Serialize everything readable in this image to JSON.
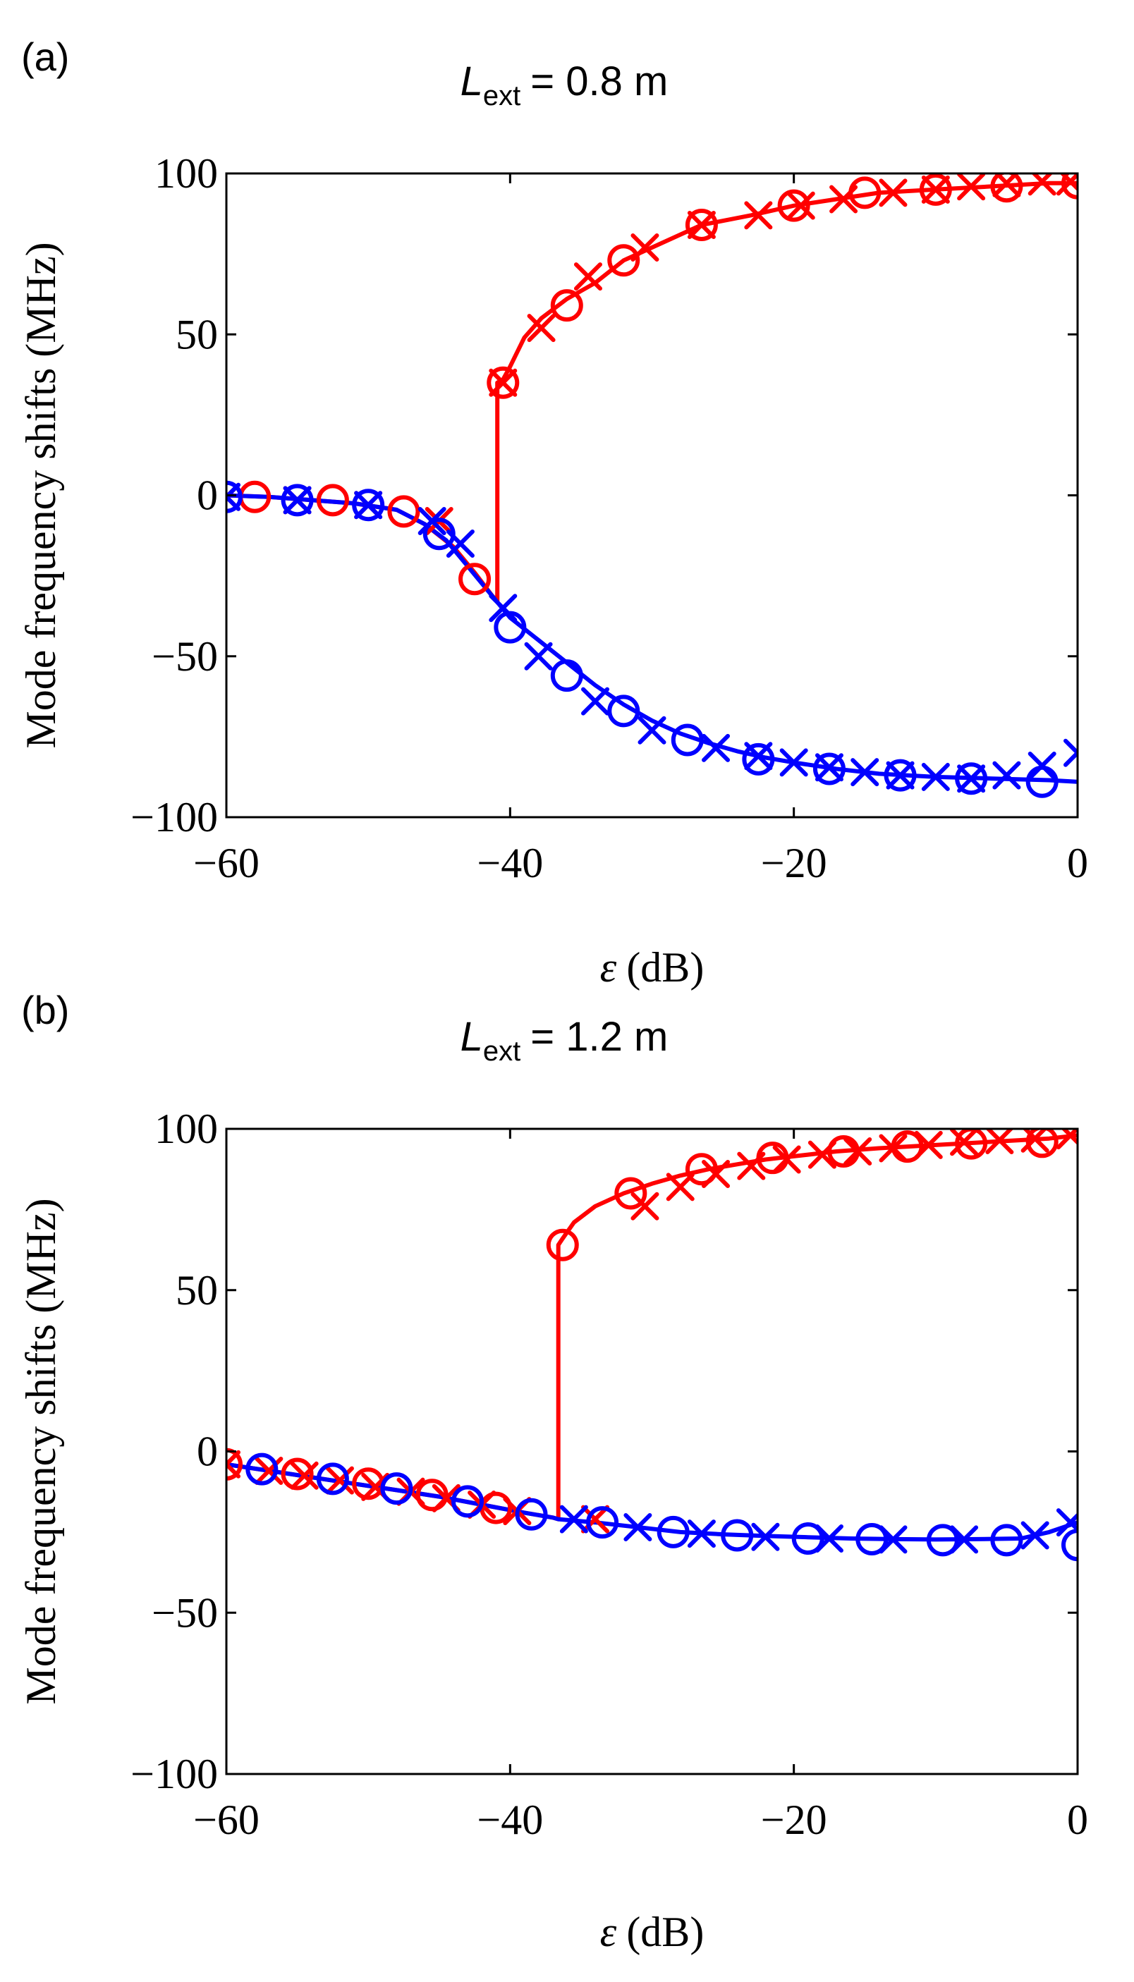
{
  "figure": {
    "panels": [
      {
        "label": "(a)",
        "title_symbol": "L",
        "title_subscript": "ext",
        "title_value": "= 0.8 m"
      },
      {
        "label": "(b)",
        "title_symbol": "L",
        "title_subscript": "ext",
        "title_value": "= 1.2 m"
      }
    ]
  },
  "chart_data": [
    {
      "type": "line",
      "panel": "(a)",
      "title": "L_ext = 0.8 m",
      "xlabel_symbol": "ε",
      "xlabel_unit": "(dB)",
      "ylabel": "Mode frequency shifts (MHz)",
      "xlim": [
        -60,
        0
      ],
      "ylim": [
        -100,
        100
      ],
      "xticks": [
        -60,
        -40,
        -20,
        0
      ],
      "xtick_labels": [
        "−60",
        "−40",
        "−20",
        "0"
      ],
      "yticks": [
        100,
        50,
        0,
        -50,
        -100
      ],
      "ytick_labels": [
        "100",
        "50",
        "0",
        "−50",
        "−100"
      ],
      "colors": {
        "red": "#ff0000",
        "blue": "#0000ff"
      },
      "series": [
        {
          "name": "red mode (curve)",
          "color": "#ff0000",
          "marker": "none",
          "x": [
            -60,
            -57,
            -54,
            -51,
            -48,
            -46,
            -44,
            -42.5,
            -41.3,
            -40.9,
            -40.9,
            -40.5,
            -40,
            -39,
            -37.8,
            -36,
            -34,
            -32,
            -29,
            -26.5,
            -23,
            -20,
            -17,
            -14,
            -10,
            -6,
            -2,
            0
          ],
          "y": [
            0,
            -0.5,
            -1.5,
            -2.5,
            -4.5,
            -9,
            -16,
            -24,
            -31,
            -33,
            35,
            36,
            40,
            49,
            55,
            61,
            66,
            73,
            79,
            84,
            87,
            90,
            92,
            94,
            95,
            96,
            97,
            97
          ]
        },
        {
          "name": "blue mode (curve)",
          "color": "#0000ff",
          "marker": "none",
          "x": [
            -60,
            -57,
            -54,
            -51,
            -48,
            -46,
            -44.5,
            -43,
            -41.5,
            -40,
            -38,
            -36,
            -34,
            -32,
            -30,
            -28,
            -26,
            -24,
            -22,
            -20,
            -17,
            -14,
            -10,
            -6,
            -2,
            0
          ],
          "y": [
            0,
            -0.5,
            -1.5,
            -2.5,
            -4.5,
            -9,
            -14,
            -22,
            -30,
            -38,
            -45,
            -52,
            -59,
            -65,
            -70,
            -74,
            -77,
            -79.5,
            -81.5,
            -83,
            -85,
            -86.5,
            -87.5,
            -88,
            -88.5,
            -89
          ]
        },
        {
          "name": "red mode (o markers)",
          "color": "#ff0000",
          "marker": "o",
          "x": [
            -58,
            -52.5,
            -47.5,
            -42.5,
            -40.5,
            -36,
            -32,
            -26.5,
            -20,
            -15,
            -10,
            -5,
            0
          ],
          "y": [
            -0.5,
            -1.5,
            -5,
            -26,
            35,
            59,
            73,
            84,
            90,
            94,
            95,
            96,
            97
          ]
        },
        {
          "name": "red mode (x markers)",
          "color": "#ff0000",
          "marker": "x",
          "x": [
            -60,
            -55,
            -50,
            -45,
            -40.5,
            -37.8,
            -34.5,
            -30.5,
            -26.5,
            -22.5,
            -19.5,
            -16.5,
            -13,
            -10,
            -7.5,
            -5,
            -2.5,
            -0.5
          ],
          "y": [
            -0.5,
            -1.5,
            -3,
            -8,
            35,
            52,
            68,
            77,
            84,
            87,
            90,
            92,
            94,
            95,
            96,
            97,
            97.5,
            97.5
          ]
        },
        {
          "name": "blue mode (o markers)",
          "color": "#0000ff",
          "marker": "o",
          "x": [
            -60,
            -55,
            -50,
            -45,
            -40,
            -36,
            -32,
            -27.5,
            -22.5,
            -17.5,
            -12.5,
            -7.5,
            -2.5
          ],
          "y": [
            -0.5,
            -1.5,
            -3,
            -12,
            -41,
            -56,
            -67,
            -76,
            -82,
            -85,
            -87,
            -88,
            -89
          ]
        },
        {
          "name": "blue mode (x markers)",
          "color": "#0000ff",
          "marker": "x",
          "x": [
            -60,
            -55,
            -50,
            -45.5,
            -43.5,
            -40.5,
            -38,
            -34,
            -30,
            -25.5,
            -22.5,
            -20,
            -17.5,
            -15,
            -12.5,
            -10,
            -7.5,
            -5,
            -2.5,
            0
          ],
          "y": [
            -0.5,
            -1.5,
            -3,
            -8,
            -15,
            -35,
            -50,
            -64,
            -73,
            -78.5,
            -81,
            -83,
            -84.5,
            -86,
            -87,
            -87.5,
            -88,
            -87,
            -84,
            -80
          ]
        }
      ]
    },
    {
      "type": "line",
      "panel": "(b)",
      "title": "L_ext = 1.2 m",
      "xlabel_symbol": "ε",
      "xlabel_unit": "(dB)",
      "ylabel": "Mode frequency shifts (MHz)",
      "xlim": [
        -60,
        0
      ],
      "ylim": [
        -100,
        100
      ],
      "xticks": [
        -60,
        -40,
        -20,
        0
      ],
      "xtick_labels": [
        "−60",
        "−40",
        "−20",
        "0"
      ],
      "yticks": [
        100,
        50,
        0,
        -50,
        -100
      ],
      "ytick_labels": [
        "100",
        "50",
        "0",
        "−50",
        "−100"
      ],
      "colors": {
        "red": "#ff0000",
        "blue": "#0000ff"
      },
      "series": [
        {
          "name": "red mode (curve)",
          "color": "#ff0000",
          "marker": "none",
          "x": [
            -60,
            -57,
            -54,
            -51,
            -48,
            -45,
            -42,
            -39,
            -37,
            -36.6,
            -36.6,
            -36.3,
            -35.5,
            -34,
            -32,
            -30,
            -28,
            -26,
            -24,
            -22,
            -20,
            -17,
            -14,
            -10,
            -6,
            -2,
            0
          ],
          "y": [
            -4,
            -6,
            -8,
            -10,
            -12,
            -14,
            -16.5,
            -19,
            -20.5,
            -21,
            64,
            66,
            71,
            76,
            80,
            83,
            85.5,
            87.5,
            89,
            90.5,
            91.5,
            93,
            94,
            95,
            96,
            97,
            98
          ]
        },
        {
          "name": "blue mode (curve)",
          "color": "#0000ff",
          "marker": "none",
          "x": [
            -60,
            -57,
            -54,
            -51,
            -48,
            -45,
            -42,
            -39,
            -37,
            -36.6,
            -34,
            -31,
            -28,
            -25,
            -22,
            -19,
            -16,
            -13,
            -10,
            -7,
            -4,
            -2,
            0
          ],
          "y": [
            -4,
            -6,
            -8,
            -10,
            -12,
            -14,
            -16.5,
            -19,
            -20.5,
            -21,
            -22,
            -23.5,
            -25,
            -25.7,
            -26.2,
            -26.6,
            -27,
            -27.2,
            -27.3,
            -27.2,
            -27,
            -25,
            -22
          ]
        },
        {
          "name": "red mode (o markers)",
          "color": "#ff0000",
          "marker": "o",
          "x": [
            -60,
            -55,
            -50,
            -45.5,
            -41,
            -36.3,
            -31.5,
            -26.5,
            -21.5,
            -16.5,
            -12,
            -7.5,
            -2.5
          ],
          "y": [
            -4,
            -7,
            -10,
            -13.5,
            -17.5,
            64,
            80,
            87.5,
            91,
            93,
            94.5,
            95.5,
            96
          ]
        },
        {
          "name": "red mode (x markers)",
          "color": "#ff0000",
          "marker": "x",
          "x": [
            -60,
            -57,
            -54.5,
            -52,
            -49.5,
            -47,
            -44.5,
            -42,
            -39.5,
            -34,
            -30.5,
            -28,
            -25.5,
            -23,
            -20.5,
            -18,
            -15.5,
            -13,
            -10.5,
            -8,
            -5.5,
            -3,
            -0.5
          ],
          "y": [
            -4,
            -6,
            -7.5,
            -9,
            -11,
            -12.5,
            -14.5,
            -16.5,
            -18.5,
            -21,
            76,
            82,
            86,
            88.5,
            90.5,
            92,
            93,
            94,
            95,
            96,
            96.5,
            97,
            98
          ]
        },
        {
          "name": "blue mode (o markers)",
          "color": "#0000ff",
          "marker": "o",
          "x": [
            -57.5,
            -52.5,
            -48,
            -43,
            -38.5,
            -33.5,
            -28.5,
            -24,
            -19,
            -14.5,
            -9.5,
            -5,
            0
          ],
          "y": [
            -5.5,
            -8.5,
            -11.5,
            -15.5,
            -19.5,
            -22,
            -25,
            -26,
            -27,
            -27.2,
            -27.5,
            -27.5,
            -29
          ]
        },
        {
          "name": "blue mode (x markers)",
          "color": "#0000ff",
          "marker": "x",
          "x": [
            -35.5,
            -31,
            -26.5,
            -22,
            -17.5,
            -13,
            -8,
            -3,
            -0.5
          ],
          "y": [
            -21,
            -23.5,
            -25.5,
            -26.5,
            -27,
            -27.3,
            -27.3,
            -26,
            -22
          ]
        }
      ]
    }
  ]
}
